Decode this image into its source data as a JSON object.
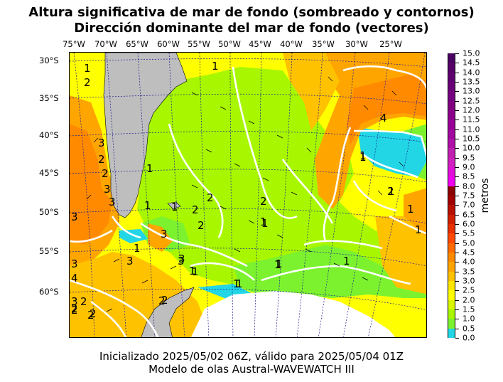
{
  "title_line1": "Altura significativa de mar de fondo (sombreado y contornos)",
  "title_line2": "Dirección dominante del mar de fondo (vectores)",
  "lon_labels": [
    "75°W",
    "70°W",
    "65°W",
    "60°W",
    "55°W",
    "50°W",
    "45°W",
    "40°W",
    "35°W",
    "30°W",
    "25°W"
  ],
  "lat_labels": [
    "30°S",
    "35°S",
    "40°S",
    "45°S",
    "50°S",
    "55°S",
    "60°S"
  ],
  "colorbar": {
    "ticks": [
      "0.0",
      "0.5",
      "1.0",
      "1.5",
      "2.0",
      "2.5",
      "3.0",
      "3.5",
      "4.0",
      "4.5",
      "5.0",
      "5.5",
      "6.0",
      "6.5",
      "7.0",
      "7.5",
      "8.0",
      "8.5",
      "9.0",
      "9.5",
      "10.0",
      "10.5",
      "11.0",
      "11.5",
      "12.0",
      "12.5",
      "13.0",
      "13.5",
      "14.0",
      "14.5",
      "15.0"
    ],
    "colors": [
      "#22d6e6",
      "#7cf22f",
      "#a8f700",
      "#d8f700",
      "#ffff00",
      "#ffe600",
      "#ffc200",
      "#ffa500",
      "#ff8a00",
      "#ff6a00",
      "#ff4800",
      "#e83000",
      "#d02000",
      "#b81000",
      "#a00000",
      "#8c0000",
      "#f000f0",
      "#e010d8",
      "#d020c0",
      "#c020b0",
      "#b010a8",
      "#a008a0",
      "#980098",
      "#8c008c",
      "#800080",
      "#740080",
      "#6a0078",
      "#600070",
      "#560068",
      "#4a0060"
    ],
    "units": "metros"
  },
  "contour_labels": [
    "1",
    "2",
    "2",
    "3",
    "2",
    "3",
    "3",
    "3",
    "3",
    "4",
    "1",
    "1",
    "1",
    "2",
    "2",
    "1",
    "2",
    "3",
    "1",
    "3",
    "3",
    "1",
    "4",
    "3",
    "2",
    "2",
    "2",
    "1",
    "1",
    "1",
    "1",
    "1",
    "1",
    "2",
    "2",
    "2",
    "3",
    "2",
    "1",
    "1",
    "1",
    "1",
    "2",
    "1",
    "1",
    "1",
    "2"
  ],
  "footer_line1": "Inicializado 2025/05/02 06Z, válido para 2025/05/04 01Z",
  "footer_line2": "Modelo de olas Austral-WAVEWATCH III",
  "colors": {
    "land": "#bebebe",
    "contour": "#ffffff",
    "grid": "#1a1a8c",
    "antarctic_white": "#ffffff"
  }
}
